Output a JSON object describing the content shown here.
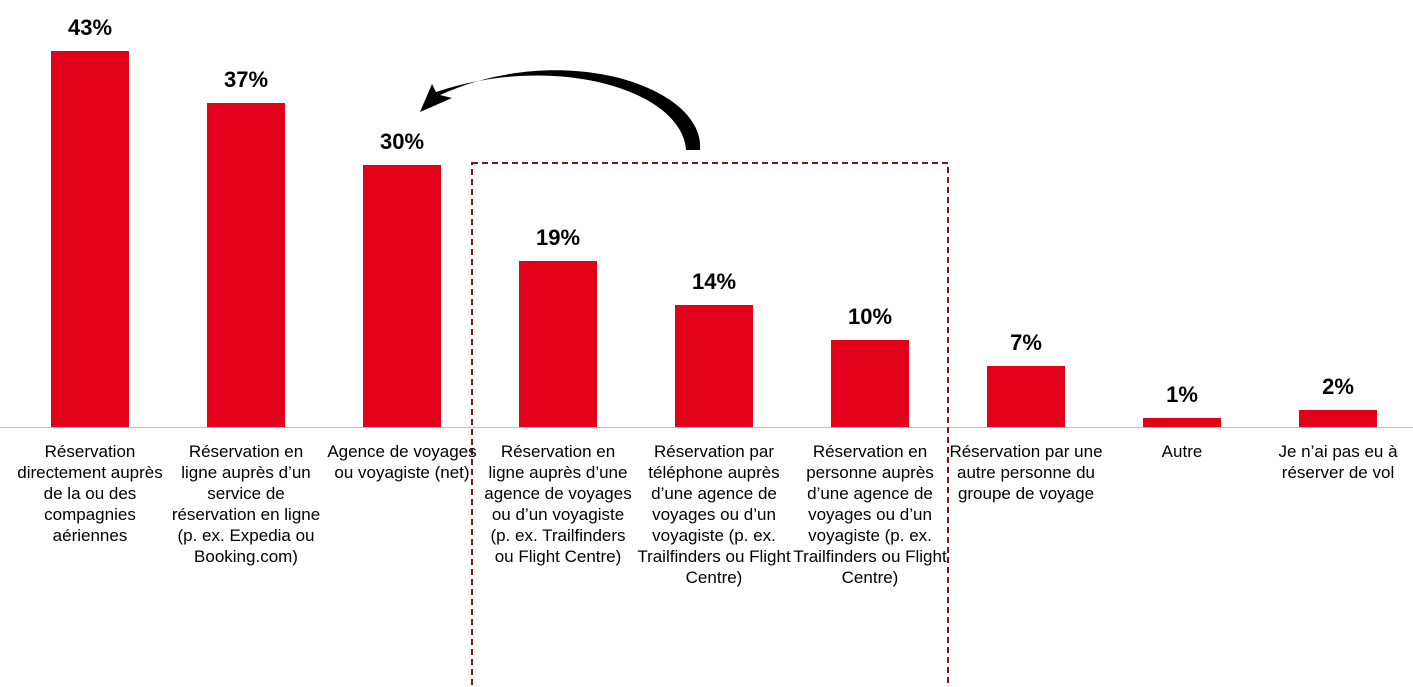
{
  "chart_data": {
    "type": "bar",
    "color": "#e3001b",
    "categories": [
      "Réservation directement auprès de la ou des compagnies aériennes",
      "Réservation en ligne auprès d’un service de réservation en ligne (p. ex. Expedia ou Booking.com)",
      "Agence de voyages ou voyagiste (net)",
      "Réservation en ligne auprès d’une agence de voyages ou d’un voyagiste (p. ex. Trailfinders ou Flight Centre)",
      "Réservation par téléphone auprès d’une agence de voyages ou d’un voyagiste (p. ex. Trailfinders ou Flight Centre)",
      "Réservation en personne auprès d’une agence de voyages ou d’un voyagiste (p. ex. Trailfinders ou Flight Centre)",
      "Réservation par une autre personne du groupe de voyage",
      "Autre",
      "Je n’ai pas eu à réserver de vol"
    ],
    "values": [
      43,
      37,
      30,
      19,
      14,
      10,
      7,
      1,
      2
    ],
    "value_labels": [
      "43%",
      "37%",
      "30%",
      "19%",
      "14%",
      "10%",
      "7%",
      "1%",
      "2%"
    ]
  }
}
